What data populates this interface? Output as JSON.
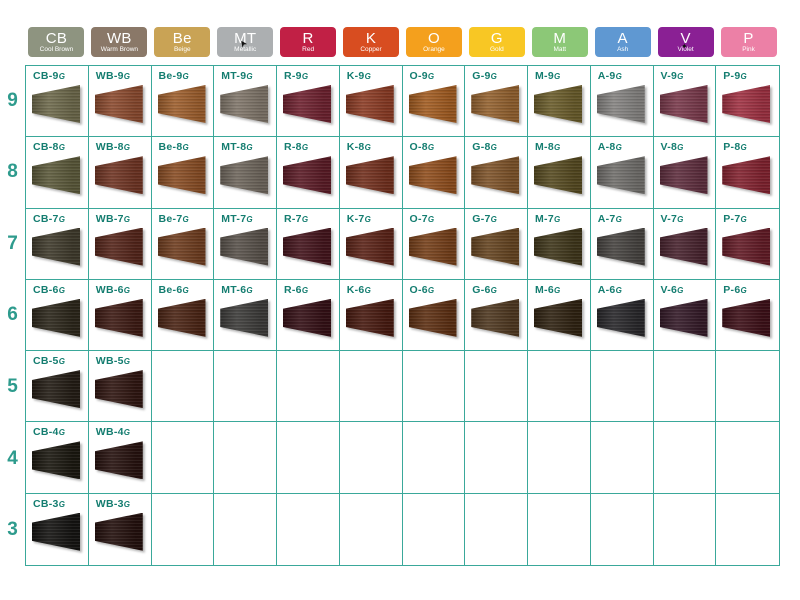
{
  "theme": {
    "background": "#FFFFFF",
    "grid_line": "#3AA89A",
    "cell_label": "#147D70",
    "level_number": "#2E9B8D",
    "chip_text": "#FFFFFF",
    "artifact_color": "#111111"
  },
  "columns": [
    {
      "code": "CB",
      "name": "Cool Brown",
      "color": "#8E9480"
    },
    {
      "code": "WB",
      "name": "Warm Brown",
      "color": "#8A7868"
    },
    {
      "code": "Be",
      "name": "Beige",
      "color": "#C9A355"
    },
    {
      "code": "MT",
      "name": "Metallic",
      "color": "#ACAFB1"
    },
    {
      "code": "R",
      "name": "Red",
      "color": "#C12045"
    },
    {
      "code": "K",
      "name": "Copper",
      "color": "#D84D20"
    },
    {
      "code": "O",
      "name": "Orange",
      "color": "#F4A01D"
    },
    {
      "code": "G",
      "name": "Gold",
      "color": "#F8C724"
    },
    {
      "code": "M",
      "name": "Matt",
      "color": "#8CC877"
    },
    {
      "code": "A",
      "name": "Ash",
      "color": "#5F98D2"
    },
    {
      "code": "V",
      "name": "Violet",
      "color": "#8A2094"
    },
    {
      "code": "P",
      "name": "Pink",
      "color": "#EC80A6"
    }
  ],
  "levels": [
    {
      "level": "9",
      "cells": [
        {
          "label": "CB-9",
          "suffix": "G",
          "color": "#6E6A4C"
        },
        {
          "label": "WB-9",
          "suffix": "G",
          "color": "#8C4B2F"
        },
        {
          "label": "Be-9",
          "suffix": "G",
          "color": "#9E5F2D"
        },
        {
          "label": "MT-9",
          "suffix": "G",
          "color": "#80766A"
        },
        {
          "label": "R-9",
          "suffix": "G",
          "color": "#6F2230"
        },
        {
          "label": "K-9",
          "suffix": "G",
          "color": "#8C3C25"
        },
        {
          "label": "O-9",
          "suffix": "G",
          "color": "#A25C21"
        },
        {
          "label": "G-9",
          "suffix": "G",
          "color": "#94622F"
        },
        {
          "label": "M-9",
          "suffix": "G",
          "color": "#6B5D2B"
        },
        {
          "label": "A-9",
          "suffix": "G",
          "color": "#858381"
        },
        {
          "label": "V-9",
          "suffix": "G",
          "color": "#7A3A4C"
        },
        {
          "label": "P-9",
          "suffix": "G",
          "color": "#A03243"
        }
      ]
    },
    {
      "level": "8",
      "cells": [
        {
          "label": "CB-8",
          "suffix": "G",
          "color": "#5C5A3B"
        },
        {
          "label": "WB-8",
          "suffix": "G",
          "color": "#703524"
        },
        {
          "label": "Be-8",
          "suffix": "G",
          "color": "#8A4E25"
        },
        {
          "label": "MT-8",
          "suffix": "G",
          "color": "#6F675D"
        },
        {
          "label": "R-8",
          "suffix": "G",
          "color": "#5C1C27"
        },
        {
          "label": "K-8",
          "suffix": "G",
          "color": "#73301E"
        },
        {
          "label": "O-8",
          "suffix": "G",
          "color": "#914F1E"
        },
        {
          "label": "G-8",
          "suffix": "G",
          "color": "#7F542A"
        },
        {
          "label": "M-8",
          "suffix": "G",
          "color": "#574B21"
        },
        {
          "label": "A-8",
          "suffix": "G",
          "color": "#716F6C"
        },
        {
          "label": "V-8",
          "suffix": "G",
          "color": "#602F3F"
        },
        {
          "label": "P-8",
          "suffix": "G",
          "color": "#832330"
        }
      ]
    },
    {
      "level": "7",
      "cells": [
        {
          "label": "CB-7",
          "suffix": "G",
          "color": "#403B2C"
        },
        {
          "label": "WB-7",
          "suffix": "G",
          "color": "#56261B"
        },
        {
          "label": "Be-7",
          "suffix": "G",
          "color": "#703E20"
        },
        {
          "label": "MT-7",
          "suffix": "G",
          "color": "#59524B"
        },
        {
          "label": "R-7",
          "suffix": "G",
          "color": "#45151D"
        },
        {
          "label": "K-7",
          "suffix": "G",
          "color": "#5C2418"
        },
        {
          "label": "O-7",
          "suffix": "G",
          "color": "#76401A"
        },
        {
          "label": "G-7",
          "suffix": "G",
          "color": "#664521"
        },
        {
          "label": "M-7",
          "suffix": "G",
          "color": "#40371B"
        },
        {
          "label": "A-7",
          "suffix": "G",
          "color": "#474441"
        },
        {
          "label": "V-7",
          "suffix": "G",
          "color": "#49242F"
        },
        {
          "label": "P-7",
          "suffix": "G",
          "color": "#641C27"
        }
      ]
    },
    {
      "level": "6",
      "cells": [
        {
          "label": "CB-6",
          "suffix": "G",
          "color": "#2C271B"
        },
        {
          "label": "WB-6",
          "suffix": "G",
          "color": "#3E1B14"
        },
        {
          "label": "Be-6",
          "suffix": "G",
          "color": "#4C2515"
        },
        {
          "label": "MT-6",
          "suffix": "G",
          "color": "#3D3C3A"
        },
        {
          "label": "R-6",
          "suffix": "G",
          "color": "#351016"
        },
        {
          "label": "K-6",
          "suffix": "G",
          "color": "#481A10"
        },
        {
          "label": "O-6",
          "suffix": "G",
          "color": "#5E3013"
        },
        {
          "label": "G-6",
          "suffix": "G",
          "color": "#503921"
        },
        {
          "label": "M-6",
          "suffix": "G",
          "color": "#302312"
        },
        {
          "label": "A-6",
          "suffix": "G",
          "color": "#29282B"
        },
        {
          "label": "V-6",
          "suffix": "G",
          "color": "#351B29"
        },
        {
          "label": "P-6",
          "suffix": "G",
          "color": "#3E1018"
        }
      ]
    },
    {
      "level": "5",
      "cells": [
        {
          "label": "CB-5",
          "suffix": "G",
          "color": "#241D15"
        },
        {
          "label": "WB-5",
          "suffix": "G",
          "color": "#301611"
        },
        null,
        null,
        null,
        null,
        null,
        null,
        null,
        null,
        null,
        null
      ]
    },
    {
      "level": "4",
      "cells": [
        {
          "label": "CB-4",
          "suffix": "G",
          "color": "#1B1810"
        },
        {
          "label": "WB-4",
          "suffix": "G",
          "color": "#27120F"
        },
        null,
        null,
        null,
        null,
        null,
        null,
        null,
        null,
        null,
        null
      ]
    },
    {
      "level": "3",
      "cells": [
        {
          "label": "CB-3",
          "suffix": "G",
          "color": "#151412"
        },
        {
          "label": "WB-3",
          "suffix": "G",
          "color": "#24100D"
        },
        null,
        null,
        null,
        null,
        null,
        null,
        null,
        null,
        null,
        null
      ]
    }
  ],
  "artifacts": {
    "cursor_glyph": "➤",
    "sparkle_glyph": "✦"
  }
}
